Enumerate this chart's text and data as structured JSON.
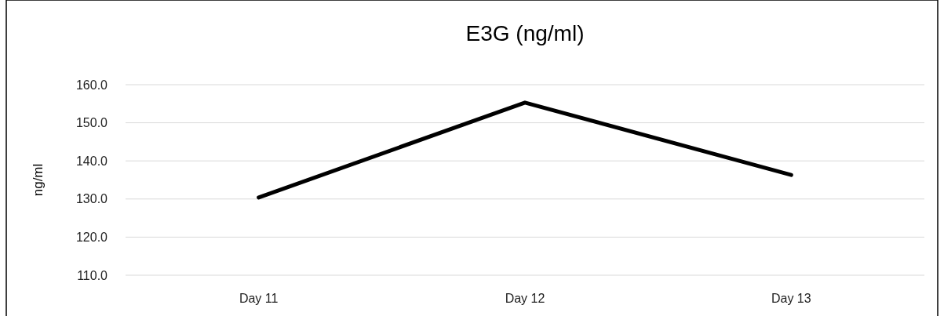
{
  "chart_data": {
    "type": "line",
    "title": "E3G (ng/ml)",
    "ylabel": "ng/ml",
    "categories": [
      "Day 11",
      "Day 12",
      "Day 13"
    ],
    "series": [
      {
        "color": "#000000",
        "values": [
          130.4,
          155.3,
          136.3
        ]
      }
    ],
    "ylim": [
      110,
      160
    ],
    "yticks": [
      {
        "value": 110,
        "label": "110.0"
      },
      {
        "value": 120,
        "label": "120.0"
      },
      {
        "value": 130,
        "label": "130.0"
      },
      {
        "value": 140,
        "label": "140.0"
      },
      {
        "value": 150,
        "label": "150.0"
      },
      {
        "value": 160,
        "label": "160.0"
      }
    ],
    "grid": "y",
    "marker": "none",
    "line_style": "solid"
  }
}
